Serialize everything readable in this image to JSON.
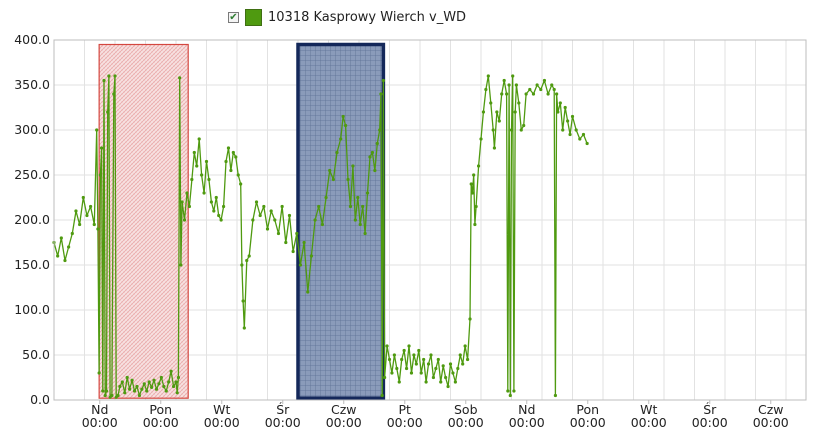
{
  "legend": {
    "checked_glyph": "✔",
    "series_label": "10318 Kasprowy Wierch v_WD"
  },
  "colors": {
    "series": "#4f9a10",
    "highlight_red_fill": "#f3c9c9",
    "highlight_red_border": "#d0342c",
    "highlight_blue_fill": "#8899b8",
    "highlight_blue_border": "#14285a",
    "grid": "#e2e2e2",
    "axis": "#bdbdbd"
  },
  "chart_data": {
    "type": "line",
    "series": [
      {
        "name": "10318 Kasprowy Wierch v_WD",
        "points": [
          [
            0.0,
            175
          ],
          [
            0.06,
            160
          ],
          [
            0.12,
            180
          ],
          [
            0.18,
            155
          ],
          [
            0.24,
            170
          ],
          [
            0.3,
            185
          ],
          [
            0.36,
            210
          ],
          [
            0.42,
            195
          ],
          [
            0.48,
            225
          ],
          [
            0.54,
            205
          ],
          [
            0.6,
            215
          ],
          [
            0.66,
            195
          ],
          [
            0.7,
            300
          ],
          [
            0.72,
            190
          ],
          [
            0.74,
            30
          ],
          [
            0.76,
            250
          ],
          [
            0.78,
            280
          ],
          [
            0.8,
            10
          ],
          [
            0.82,
            355
          ],
          [
            0.84,
            5
          ],
          [
            0.86,
            10
          ],
          [
            0.88,
            320
          ],
          [
            0.9,
            360
          ],
          [
            0.92,
            3
          ],
          [
            0.95,
            5
          ],
          [
            0.98,
            340
          ],
          [
            1.0,
            360
          ],
          [
            1.02,
            3
          ],
          [
            1.05,
            5
          ],
          [
            1.08,
            15
          ],
          [
            1.12,
            20
          ],
          [
            1.16,
            8
          ],
          [
            1.2,
            25
          ],
          [
            1.24,
            12
          ],
          [
            1.28,
            22
          ],
          [
            1.32,
            10
          ],
          [
            1.36,
            15
          ],
          [
            1.4,
            5
          ],
          [
            1.44,
            12
          ],
          [
            1.48,
            18
          ],
          [
            1.52,
            10
          ],
          [
            1.56,
            20
          ],
          [
            1.6,
            14
          ],
          [
            1.64,
            22
          ],
          [
            1.68,
            12
          ],
          [
            1.72,
            18
          ],
          [
            1.76,
            25
          ],
          [
            1.8,
            15
          ],
          [
            1.84,
            10
          ],
          [
            1.88,
            20
          ],
          [
            1.92,
            32
          ],
          [
            1.96,
            15
          ],
          [
            2.0,
            20
          ],
          [
            2.02,
            8
          ],
          [
            2.04,
            25
          ],
          [
            2.06,
            358
          ],
          [
            2.08,
            150
          ],
          [
            2.1,
            220
          ],
          [
            2.14,
            200
          ],
          [
            2.18,
            230
          ],
          [
            2.22,
            215
          ],
          [
            2.26,
            245
          ],
          [
            2.3,
            275
          ],
          [
            2.34,
            260
          ],
          [
            2.38,
            290
          ],
          [
            2.42,
            250
          ],
          [
            2.46,
            230
          ],
          [
            2.5,
            265
          ],
          [
            2.54,
            245
          ],
          [
            2.58,
            220
          ],
          [
            2.62,
            210
          ],
          [
            2.66,
            225
          ],
          [
            2.7,
            205
          ],
          [
            2.74,
            200
          ],
          [
            2.78,
            215
          ],
          [
            2.82,
            265
          ],
          [
            2.86,
            280
          ],
          [
            2.9,
            255
          ],
          [
            2.94,
            275
          ],
          [
            2.98,
            270
          ],
          [
            3.02,
            250
          ],
          [
            3.06,
            240
          ],
          [
            3.08,
            150
          ],
          [
            3.1,
            110
          ],
          [
            3.12,
            80
          ],
          [
            3.16,
            155
          ],
          [
            3.2,
            160
          ],
          [
            3.26,
            200
          ],
          [
            3.32,
            220
          ],
          [
            3.38,
            205
          ],
          [
            3.44,
            215
          ],
          [
            3.5,
            190
          ],
          [
            3.56,
            210
          ],
          [
            3.62,
            200
          ],
          [
            3.68,
            185
          ],
          [
            3.74,
            215
          ],
          [
            3.8,
            175
          ],
          [
            3.86,
            205
          ],
          [
            3.92,
            165
          ],
          [
            3.98,
            185
          ],
          [
            4.04,
            150
          ],
          [
            4.1,
            175
          ],
          [
            4.16,
            120
          ],
          [
            4.22,
            160
          ],
          [
            4.28,
            200
          ],
          [
            4.34,
            215
          ],
          [
            4.4,
            195
          ],
          [
            4.46,
            225
          ],
          [
            4.52,
            255
          ],
          [
            4.58,
            245
          ],
          [
            4.64,
            275
          ],
          [
            4.7,
            290
          ],
          [
            4.74,
            315
          ],
          [
            4.78,
            305
          ],
          [
            4.82,
            245
          ],
          [
            4.86,
            215
          ],
          [
            4.9,
            260
          ],
          [
            4.94,
            200
          ],
          [
            4.98,
            225
          ],
          [
            5.02,
            195
          ],
          [
            5.06,
            215
          ],
          [
            5.1,
            185
          ],
          [
            5.14,
            230
          ],
          [
            5.18,
            270
          ],
          [
            5.22,
            275
          ],
          [
            5.26,
            255
          ],
          [
            5.3,
            285
          ],
          [
            5.34,
            300
          ],
          [
            5.36,
            340
          ],
          [
            5.38,
            5
          ],
          [
            5.4,
            355
          ],
          [
            5.42,
            25
          ],
          [
            5.46,
            60
          ],
          [
            5.5,
            45
          ],
          [
            5.54,
            30
          ],
          [
            5.58,
            50
          ],
          [
            5.62,
            35
          ],
          [
            5.66,
            20
          ],
          [
            5.7,
            45
          ],
          [
            5.74,
            55
          ],
          [
            5.78,
            35
          ],
          [
            5.82,
            60
          ],
          [
            5.86,
            30
          ],
          [
            5.9,
            50
          ],
          [
            5.94,
            40
          ],
          [
            5.98,
            55
          ],
          [
            6.02,
            30
          ],
          [
            6.06,
            45
          ],
          [
            6.1,
            20
          ],
          [
            6.14,
            40
          ],
          [
            6.18,
            50
          ],
          [
            6.22,
            25
          ],
          [
            6.26,
            35
          ],
          [
            6.3,
            45
          ],
          [
            6.34,
            20
          ],
          [
            6.38,
            38
          ],
          [
            6.42,
            25
          ],
          [
            6.46,
            15
          ],
          [
            6.5,
            40
          ],
          [
            6.54,
            30
          ],
          [
            6.58,
            20
          ],
          [
            6.62,
            35
          ],
          [
            6.66,
            50
          ],
          [
            6.7,
            40
          ],
          [
            6.74,
            60
          ],
          [
            6.78,
            45
          ],
          [
            6.82,
            90
          ],
          [
            6.84,
            240
          ],
          [
            6.86,
            230
          ],
          [
            6.88,
            250
          ],
          [
            6.9,
            195
          ],
          [
            6.92,
            215
          ],
          [
            6.96,
            260
          ],
          [
            7.0,
            290
          ],
          [
            7.04,
            320
          ],
          [
            7.08,
            345
          ],
          [
            7.12,
            360
          ],
          [
            7.16,
            330
          ],
          [
            7.2,
            300
          ],
          [
            7.22,
            280
          ],
          [
            7.26,
            320
          ],
          [
            7.3,
            310
          ],
          [
            7.34,
            340
          ],
          [
            7.38,
            355
          ],
          [
            7.42,
            340
          ],
          [
            7.44,
            10
          ],
          [
            7.46,
            350
          ],
          [
            7.48,
            5
          ],
          [
            7.5,
            300
          ],
          [
            7.52,
            360
          ],
          [
            7.54,
            10
          ],
          [
            7.56,
            320
          ],
          [
            7.58,
            350
          ],
          [
            7.62,
            330
          ],
          [
            7.66,
            300
          ],
          [
            7.7,
            305
          ],
          [
            7.74,
            340
          ],
          [
            7.8,
            345
          ],
          [
            7.86,
            340
          ],
          [
            7.92,
            350
          ],
          [
            7.98,
            345
          ],
          [
            8.04,
            355
          ],
          [
            8.1,
            340
          ],
          [
            8.16,
            350
          ],
          [
            8.2,
            345
          ],
          [
            8.22,
            5
          ],
          [
            8.24,
            340
          ],
          [
            8.26,
            320
          ],
          [
            8.3,
            330
          ],
          [
            8.34,
            300
          ],
          [
            8.38,
            325
          ],
          [
            8.42,
            310
          ],
          [
            8.46,
            295
          ],
          [
            8.5,
            315
          ],
          [
            8.56,
            300
          ],
          [
            8.62,
            290
          ],
          [
            8.68,
            295
          ],
          [
            8.74,
            285
          ]
        ]
      }
    ],
    "x_range_days": [
      0,
      8.75
    ],
    "x_ticks": [
      {
        "x": 0.75,
        "day": "Nd",
        "time": "00:00"
      },
      {
        "x": 1.75,
        "day": "Pon",
        "time": "00:00"
      },
      {
        "x": 2.75,
        "day": "Wt",
        "time": "00:00"
      },
      {
        "x": 3.75,
        "day": "Śr",
        "time": "00:00"
      },
      {
        "x": 4.75,
        "day": "Czw",
        "time": "00:00"
      },
      {
        "x": 5.75,
        "day": "Pt",
        "time": "00:00"
      },
      {
        "x": 6.75,
        "day": "Sob",
        "time": "00:00"
      },
      {
        "x": 7.75,
        "day": "Nd",
        "time": "00:00"
      },
      {
        "x": 8.75,
        "day": "Pon",
        "time": "00:00"
      },
      {
        "x": 9.75,
        "day": "Wt",
        "time": "00:00"
      },
      {
        "x": 10.75,
        "day": "Śr",
        "time": "00:00"
      },
      {
        "x": 11.75,
        "day": "Czw",
        "time": "00:00"
      }
    ],
    "y_ticks": [
      "0.0",
      "50.0",
      "100.0",
      "150.0",
      "200.0",
      "250.0",
      "300.0",
      "350.0",
      "400.0"
    ],
    "ylim": [
      0,
      400
    ],
    "grid": true,
    "highlights": [
      {
        "x0": 0.74,
        "x1": 2.2,
        "y0": 2,
        "y1": 395,
        "style": "red-hatched"
      },
      {
        "x0": 4.0,
        "x1": 5.4,
        "y0": 2,
        "y1": 395,
        "style": "blue-grid"
      }
    ]
  }
}
